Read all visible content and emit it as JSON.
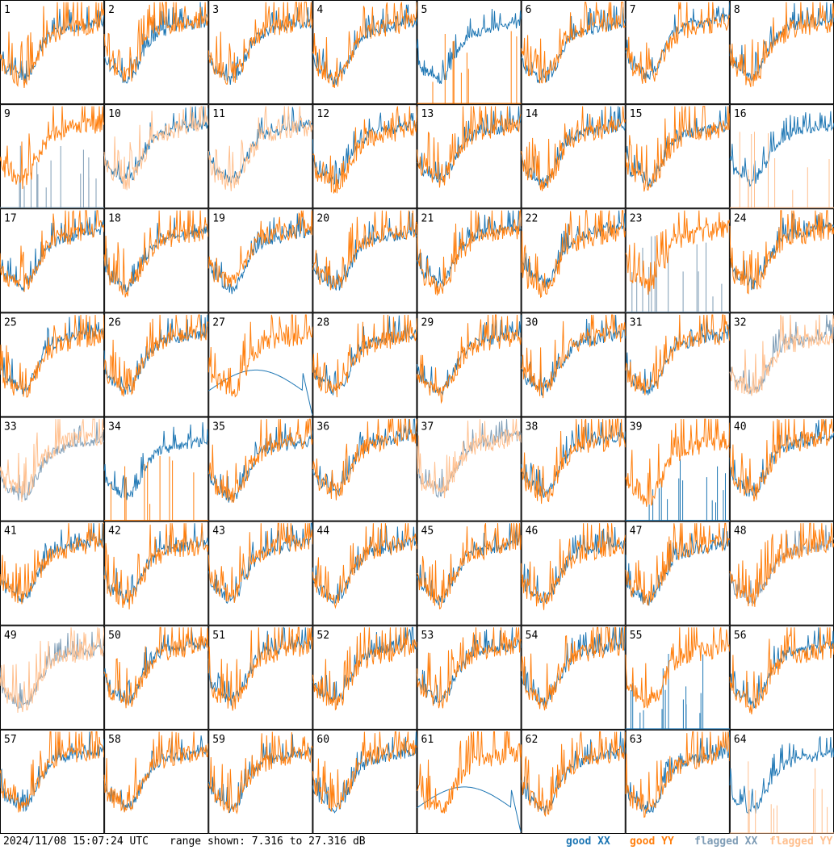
{
  "footer": {
    "timestamp": "2024/11/08 15:07:24 UTC",
    "range_text": "range shown: 7.316 to 27.316 dB",
    "legend": {
      "good_xx": "good XX",
      "good_yy": "good YY",
      "flagged_xx": "flagged XX",
      "flagged_yy": "flagged YY"
    }
  },
  "colors": {
    "good_xx": "#1f77b4",
    "good_yy": "#ff7f0e",
    "flagged_xx": "#7f9db6",
    "flagged_yy": "#ffc08f"
  },
  "chart_data": {
    "type": "line",
    "layout": "8x8 small multiples",
    "y_unit": "dB",
    "ylim": [
      7.316,
      27.316
    ],
    "panels": [
      {
        "id": "1",
        "xx": "good",
        "yy": "good",
        "behavior": "normal"
      },
      {
        "id": "2",
        "xx": "good",
        "yy": "good",
        "behavior": "normal"
      },
      {
        "id": "3",
        "xx": "good",
        "yy": "good",
        "behavior": "normal"
      },
      {
        "id": "4",
        "xx": "good",
        "yy": "good",
        "behavior": "normal"
      },
      {
        "id": "5",
        "xx": "good",
        "yy": "good",
        "behavior": "yy_spikes"
      },
      {
        "id": "6",
        "xx": "good",
        "yy": "good",
        "behavior": "normal"
      },
      {
        "id": "7",
        "xx": "good",
        "yy": "good",
        "behavior": "normal"
      },
      {
        "id": "8",
        "xx": "good",
        "yy": "good",
        "behavior": "normal"
      },
      {
        "id": "9",
        "xx": "flagged",
        "yy": "good",
        "behavior": "xx_spikes"
      },
      {
        "id": "10",
        "xx": "good",
        "yy": "flagged",
        "behavior": "normal"
      },
      {
        "id": "11",
        "xx": "good",
        "yy": "flagged",
        "behavior": "normal"
      },
      {
        "id": "12",
        "xx": "good",
        "yy": "good",
        "behavior": "normal"
      },
      {
        "id": "13",
        "xx": "good",
        "yy": "good",
        "behavior": "normal"
      },
      {
        "id": "14",
        "xx": "good",
        "yy": "good",
        "behavior": "normal"
      },
      {
        "id": "15",
        "xx": "good",
        "yy": "good",
        "behavior": "normal"
      },
      {
        "id": "16",
        "xx": "good",
        "yy": "flagged",
        "behavior": "yy_spikes"
      },
      {
        "id": "17",
        "xx": "good",
        "yy": "good",
        "behavior": "normal"
      },
      {
        "id": "18",
        "xx": "good",
        "yy": "good",
        "behavior": "normal"
      },
      {
        "id": "19",
        "xx": "good",
        "yy": "good",
        "behavior": "normal"
      },
      {
        "id": "20",
        "xx": "good",
        "yy": "good",
        "behavior": "normal"
      },
      {
        "id": "21",
        "xx": "good",
        "yy": "good",
        "behavior": "normal"
      },
      {
        "id": "22",
        "xx": "good",
        "yy": "good",
        "behavior": "normal"
      },
      {
        "id": "23",
        "xx": "flagged",
        "yy": "good",
        "behavior": "xx_spikes"
      },
      {
        "id": "24",
        "xx": "good",
        "yy": "good",
        "behavior": "normal"
      },
      {
        "id": "25",
        "xx": "good",
        "yy": "good",
        "behavior": "normal"
      },
      {
        "id": "26",
        "xx": "good",
        "yy": "good",
        "behavior": "normal"
      },
      {
        "id": "27",
        "xx": "good",
        "yy": "good",
        "behavior": "xx_dropout"
      },
      {
        "id": "28",
        "xx": "good",
        "yy": "good",
        "behavior": "normal"
      },
      {
        "id": "29",
        "xx": "good",
        "yy": "good",
        "behavior": "normal"
      },
      {
        "id": "30",
        "xx": "good",
        "yy": "good",
        "behavior": "normal"
      },
      {
        "id": "31",
        "xx": "good",
        "yy": "good",
        "behavior": "normal"
      },
      {
        "id": "32",
        "xx": "flagged",
        "yy": "flagged",
        "behavior": "normal"
      },
      {
        "id": "33",
        "xx": "flagged",
        "yy": "flagged",
        "behavior": "normal"
      },
      {
        "id": "34",
        "xx": "good",
        "yy": "good",
        "behavior": "yy_spikes"
      },
      {
        "id": "35",
        "xx": "good",
        "yy": "good",
        "behavior": "normal"
      },
      {
        "id": "36",
        "xx": "good",
        "yy": "good",
        "behavior": "normal"
      },
      {
        "id": "37",
        "xx": "flagged",
        "yy": "flagged",
        "behavior": "normal"
      },
      {
        "id": "38",
        "xx": "good",
        "yy": "good",
        "behavior": "normal"
      },
      {
        "id": "39",
        "xx": "good",
        "yy": "good",
        "behavior": "xx_spikes"
      },
      {
        "id": "40",
        "xx": "good",
        "yy": "good",
        "behavior": "normal"
      },
      {
        "id": "41",
        "xx": "good",
        "yy": "good",
        "behavior": "normal"
      },
      {
        "id": "42",
        "xx": "good",
        "yy": "good",
        "behavior": "normal"
      },
      {
        "id": "43",
        "xx": "good",
        "yy": "good",
        "behavior": "normal"
      },
      {
        "id": "44",
        "xx": "good",
        "yy": "good",
        "behavior": "normal"
      },
      {
        "id": "45",
        "xx": "good",
        "yy": "good",
        "behavior": "normal"
      },
      {
        "id": "46",
        "xx": "good",
        "yy": "good",
        "behavior": "normal"
      },
      {
        "id": "47",
        "xx": "good",
        "yy": "good",
        "behavior": "normal"
      },
      {
        "id": "48",
        "xx": "flagged",
        "yy": "good",
        "behavior": "normal"
      },
      {
        "id": "49",
        "xx": "flagged",
        "yy": "flagged",
        "behavior": "normal"
      },
      {
        "id": "50",
        "xx": "good",
        "yy": "good",
        "behavior": "normal"
      },
      {
        "id": "51",
        "xx": "good",
        "yy": "good",
        "behavior": "normal"
      },
      {
        "id": "52",
        "xx": "good",
        "yy": "good",
        "behavior": "normal"
      },
      {
        "id": "53",
        "xx": "good",
        "yy": "good",
        "behavior": "normal"
      },
      {
        "id": "54",
        "xx": "good",
        "yy": "good",
        "behavior": "normal"
      },
      {
        "id": "55",
        "xx": "good",
        "yy": "good",
        "behavior": "xx_spikes"
      },
      {
        "id": "56",
        "xx": "good",
        "yy": "good",
        "behavior": "normal"
      },
      {
        "id": "57",
        "xx": "good",
        "yy": "good",
        "behavior": "normal"
      },
      {
        "id": "58",
        "xx": "good",
        "yy": "good",
        "behavior": "normal"
      },
      {
        "id": "59",
        "xx": "good",
        "yy": "good",
        "behavior": "normal"
      },
      {
        "id": "60",
        "xx": "good",
        "yy": "good",
        "behavior": "normal"
      },
      {
        "id": "61",
        "xx": "good",
        "yy": "good",
        "behavior": "xx_dropout"
      },
      {
        "id": "62",
        "xx": "good",
        "yy": "good",
        "behavior": "normal"
      },
      {
        "id": "63",
        "xx": "good",
        "yy": "good",
        "behavior": "normal"
      },
      {
        "id": "64",
        "xx": "good",
        "yy": "flagged",
        "behavior": "yy_spikes"
      }
    ]
  }
}
